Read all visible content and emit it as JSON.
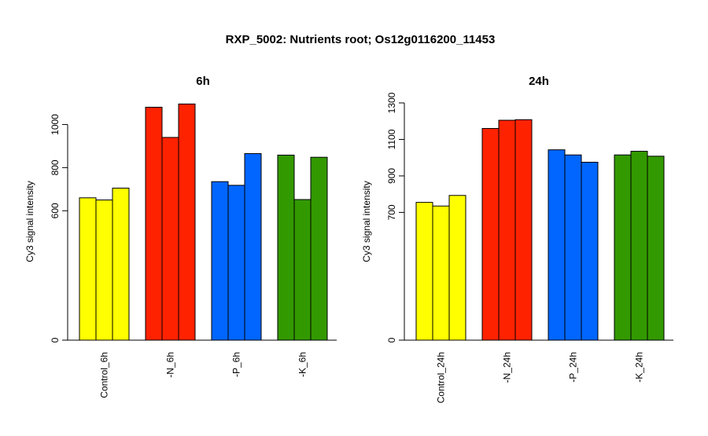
{
  "title": "RXP_5002: Nutrients root; Os12g0116200_11453",
  "colors": {
    "control": "#ffff00",
    "minus_n": "#ff2200",
    "minus_p": "#0066ff",
    "minus_k": "#339900"
  },
  "chart_data": [
    {
      "type": "bar",
      "title": "6h",
      "ylabel": "Cy3 signal intensity",
      "ylim": [
        0,
        1100
      ],
      "yticks": [
        0,
        600,
        800,
        1000
      ],
      "ytick_labels": [
        "0",
        "600",
        "800",
        "1000"
      ],
      "categories": [
        "Control_6h",
        "-N_6h",
        "-P_6h",
        "-K_6h"
      ],
      "category_colors": [
        "#ffff00",
        "#ff2200",
        "#0066ff",
        "#339900"
      ],
      "values": [
        [
          660,
          650,
          705
        ],
        [
          1080,
          940,
          1095
        ],
        [
          735,
          718,
          865
        ],
        [
          858,
          652,
          848
        ]
      ]
    },
    {
      "type": "bar",
      "title": "24h",
      "ylabel": "Cy3 signal intensity",
      "ylim": [
        0,
        1300
      ],
      "yticks": [
        0,
        700,
        900,
        1100,
        1300
      ],
      "ytick_labels": [
        "0",
        "700",
        "900",
        "1100",
        "1300"
      ],
      "categories": [
        "Control_24h",
        "-N_24h",
        "-P_24h",
        "-K_24h"
      ],
      "category_colors": [
        "#ffff00",
        "#ff2200",
        "#0066ff",
        "#339900"
      ],
      "values": [
        [
          755,
          735,
          793
        ],
        [
          1160,
          1205,
          1208
        ],
        [
          1043,
          1015,
          975
        ],
        [
          1015,
          1035,
          1008
        ]
      ]
    }
  ]
}
